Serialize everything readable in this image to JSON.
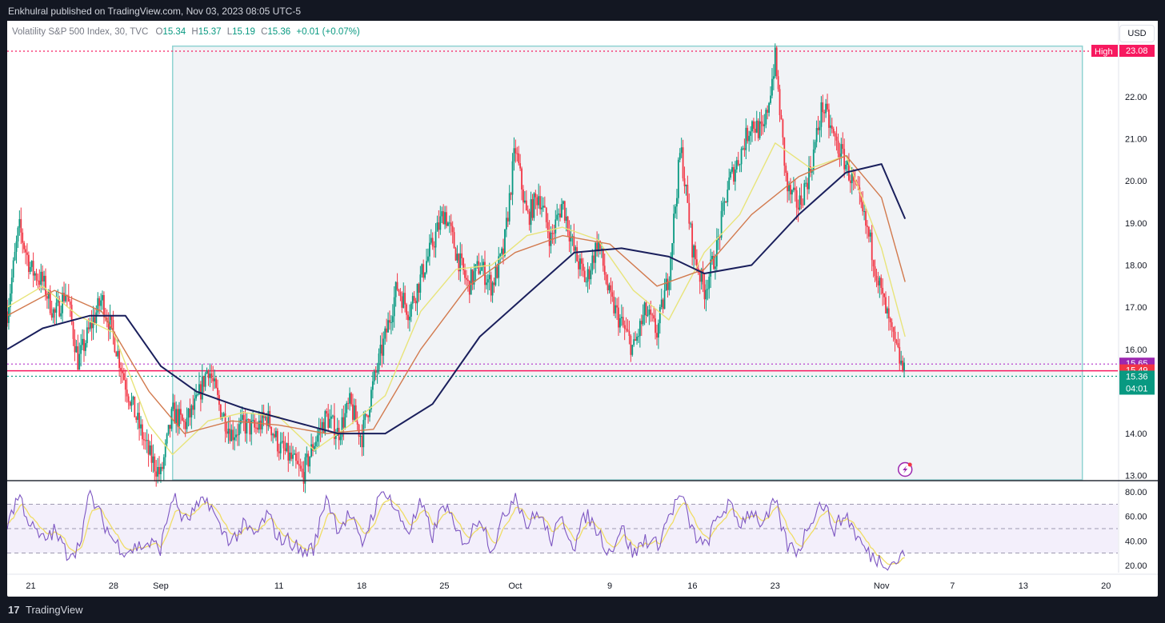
{
  "header": {
    "publish_text": "Enkhulral published on TradingView.com, Nov 03, 2023 08:05 UTC-5"
  },
  "legend": {
    "symbol": "Volatility S&P 500 Index, 30, TVC",
    "o_label": "O",
    "o_value": "15.34",
    "h_label": "H",
    "h_value": "15.37",
    "l_label": "L",
    "l_value": "15.19",
    "c_label": "C",
    "c_value": "15.36",
    "change": "+0.01 (+0.07%)"
  },
  "currency_button": "USD",
  "footer": {
    "logo_glyph": "17",
    "brand": "TradingView"
  },
  "colors": {
    "up": "#089981",
    "down": "#f23645",
    "sma_short": "#e8e47a",
    "sma_mid": "#d27a4e",
    "sma_long": "#1a1f5c",
    "rsi": "#7e57c2",
    "rsi_signal": "#f0dd65",
    "high_label": "#f7195f",
    "box_border": "#8fd3d2",
    "box_fill": "#f1f3f6"
  },
  "chart_data": [
    {
      "type": "candlestick",
      "x_unit": "calendar day (2023)",
      "x_range": [
        "2023-08-19",
        "2023-11-21"
      ],
      "y_range": [
        12.9,
        23.65
      ],
      "y_ticks": [
        "13.00",
        "14.00",
        "16.00",
        "17.00",
        "18.00",
        "19.00",
        "20.00",
        "21.00",
        "22.00"
      ],
      "x_ticks": [
        {
          "date": "2023-08-21",
          "label": "21"
        },
        {
          "date": "2023-08-28",
          "label": "28"
        },
        {
          "date": "2023-09-01",
          "label": "Sep"
        },
        {
          "date": "2023-09-11",
          "label": "11"
        },
        {
          "date": "2023-09-18",
          "label": "18"
        },
        {
          "date": "2023-09-25",
          "label": "25"
        },
        {
          "date": "2023-10-01",
          "label": "Oct"
        },
        {
          "date": "2023-10-09",
          "label": "9"
        },
        {
          "date": "2023-10-16",
          "label": "16"
        },
        {
          "date": "2023-10-23",
          "label": "23"
        },
        {
          "date": "2023-11-01",
          "label": "Nov"
        },
        {
          "date": "2023-11-07",
          "label": "7"
        },
        {
          "date": "2023-11-13",
          "label": "13"
        },
        {
          "date": "2023-11-20",
          "label": "20"
        }
      ],
      "price_path": [
        [
          "2023-08-19",
          16.9
        ],
        [
          "2023-08-20",
          18.9
        ],
        [
          "2023-08-21",
          17.9
        ],
        [
          "2023-08-22",
          17.6
        ],
        [
          "2023-08-23",
          16.8
        ],
        [
          "2023-08-24",
          17.4
        ],
        [
          "2023-08-25",
          15.7
        ],
        [
          "2023-08-26",
          16.5
        ],
        [
          "2023-08-27",
          17.2
        ],
        [
          "2023-08-28",
          16.3
        ],
        [
          "2023-08-29",
          15.2
        ],
        [
          "2023-08-30",
          14.3
        ],
        [
          "2023-08-31",
          13.5
        ],
        [
          "2023-09-01",
          13.0
        ],
        [
          "2023-09-02",
          14.5
        ],
        [
          "2023-09-03",
          14.2
        ],
        [
          "2023-09-04",
          14.7
        ],
        [
          "2023-09-05",
          15.6
        ],
        [
          "2023-09-06",
          14.6
        ],
        [
          "2023-09-07",
          14.0
        ],
        [
          "2023-09-08",
          14.2
        ],
        [
          "2023-09-09",
          14.1
        ],
        [
          "2023-09-10",
          14.4
        ],
        [
          "2023-09-11",
          13.7
        ],
        [
          "2023-09-12",
          13.4
        ],
        [
          "2023-09-13",
          13.0
        ],
        [
          "2023-09-14",
          13.8
        ],
        [
          "2023-09-15",
          14.4
        ],
        [
          "2023-09-16",
          14.0
        ],
        [
          "2023-09-17",
          14.7
        ],
        [
          "2023-09-18",
          13.9
        ],
        [
          "2023-09-19",
          15.2
        ],
        [
          "2023-09-20",
          16.3
        ],
        [
          "2023-09-21",
          17.5
        ],
        [
          "2023-09-22",
          16.9
        ],
        [
          "2023-09-23",
          17.7
        ],
        [
          "2023-09-24",
          18.5
        ],
        [
          "2023-09-25",
          19.3
        ],
        [
          "2023-09-26",
          18.3
        ],
        [
          "2023-09-27",
          17.5
        ],
        [
          "2023-09-28",
          18.0
        ],
        [
          "2023-09-29",
          17.5
        ],
        [
          "2023-09-30",
          18.3
        ],
        [
          "2023-10-01",
          20.8
        ],
        [
          "2023-10-02",
          19.1
        ],
        [
          "2023-10-03",
          19.7
        ],
        [
          "2023-10-04",
          18.6
        ],
        [
          "2023-10-05",
          19.5
        ],
        [
          "2023-10-06",
          18.3
        ],
        [
          "2023-10-07",
          17.6
        ],
        [
          "2023-10-08",
          18.6
        ],
        [
          "2023-10-09",
          17.2
        ],
        [
          "2023-10-10",
          16.6
        ],
        [
          "2023-10-11",
          16.0
        ],
        [
          "2023-10-12",
          16.9
        ],
        [
          "2023-10-13",
          16.4
        ],
        [
          "2023-10-14",
          17.8
        ],
        [
          "2023-10-15",
          20.8
        ],
        [
          "2023-10-16",
          18.4
        ],
        [
          "2023-10-17",
          17.4
        ],
        [
          "2023-10-18",
          18.3
        ],
        [
          "2023-10-19",
          19.9
        ],
        [
          "2023-10-20",
          20.6
        ],
        [
          "2023-10-21",
          21.4
        ],
        [
          "2023-10-22",
          21.1
        ],
        [
          "2023-10-23",
          22.9
        ],
        [
          "2023-10-24",
          19.8
        ],
        [
          "2023-10-25",
          19.4
        ],
        [
          "2023-10-26",
          20.3
        ],
        [
          "2023-10-27",
          21.8
        ],
        [
          "2023-10-28",
          21.0
        ],
        [
          "2023-10-29",
          20.4
        ],
        [
          "2023-10-30",
          19.6
        ],
        [
          "2023-10-31",
          18.6
        ],
        [
          "2023-11-01",
          17.3
        ],
        [
          "2023-11-02",
          16.2
        ],
        [
          "2023-11-03",
          15.36
        ]
      ],
      "moving_averages": [
        {
          "color_key": "sma_short",
          "points": [
            [
              "2023-08-19",
              17.0
            ],
            [
              "2023-08-22",
              17.5
            ],
            [
              "2023-08-25",
              16.8
            ],
            [
              "2023-08-28",
              16.4
            ],
            [
              "2023-08-31",
              14.2
            ],
            [
              "2023-09-02",
              13.5
            ],
            [
              "2023-09-05",
              14.3
            ],
            [
              "2023-09-08",
              14.5
            ],
            [
              "2023-09-11",
              14.4
            ],
            [
              "2023-09-14",
              13.6
            ],
            [
              "2023-09-17",
              14.2
            ],
            [
              "2023-09-20",
              14.9
            ],
            [
              "2023-09-23",
              16.9
            ],
            [
              "2023-09-26",
              17.9
            ],
            [
              "2023-09-29",
              18.0
            ],
            [
              "2023-10-02",
              18.7
            ],
            [
              "2023-10-05",
              18.9
            ],
            [
              "2023-10-08",
              18.6
            ],
            [
              "2023-10-11",
              17.4
            ],
            [
              "2023-10-14",
              16.7
            ],
            [
              "2023-10-17",
              18.3
            ],
            [
              "2023-10-20",
              19.2
            ],
            [
              "2023-10-23",
              20.9
            ],
            [
              "2023-10-26",
              20.3
            ],
            [
              "2023-10-29",
              20.6
            ],
            [
              "2023-11-01",
              18.4
            ],
            [
              "2023-11-03",
              16.3
            ]
          ]
        },
        {
          "color_key": "sma_mid",
          "points": [
            [
              "2023-08-19",
              16.8
            ],
            [
              "2023-08-23",
              17.4
            ],
            [
              "2023-08-27",
              16.9
            ],
            [
              "2023-08-31",
              15.0
            ],
            [
              "2023-09-03",
              14.0
            ],
            [
              "2023-09-07",
              14.3
            ],
            [
              "2023-09-11",
              14.2
            ],
            [
              "2023-09-15",
              14.0
            ],
            [
              "2023-09-19",
              14.1
            ],
            [
              "2023-09-23",
              16.0
            ],
            [
              "2023-09-27",
              17.5
            ],
            [
              "2023-10-01",
              18.3
            ],
            [
              "2023-10-05",
              18.7
            ],
            [
              "2023-10-09",
              18.5
            ],
            [
              "2023-10-13",
              17.5
            ],
            [
              "2023-10-17",
              17.9
            ],
            [
              "2023-10-21",
              19.2
            ],
            [
              "2023-10-25",
              20.1
            ],
            [
              "2023-10-29",
              20.6
            ],
            [
              "2023-11-01",
              19.6
            ],
            [
              "2023-11-03",
              17.6
            ]
          ]
        },
        {
          "color_key": "sma_long",
          "points": [
            [
              "2023-08-19",
              16.0
            ],
            [
              "2023-08-22",
              16.5
            ],
            [
              "2023-08-26",
              16.8
            ],
            [
              "2023-08-29",
              16.8
            ],
            [
              "2023-09-01",
              15.6
            ],
            [
              "2023-09-04",
              15.0
            ],
            [
              "2023-09-08",
              14.6
            ],
            [
              "2023-09-12",
              14.3
            ],
            [
              "2023-09-16",
              14.0
            ],
            [
              "2023-09-20",
              14.0
            ],
            [
              "2023-09-24",
              14.7
            ],
            [
              "2023-09-28",
              16.3
            ],
            [
              "2023-10-02",
              17.3
            ],
            [
              "2023-10-06",
              18.3
            ],
            [
              "2023-10-10",
              18.4
            ],
            [
              "2023-10-14",
              18.2
            ],
            [
              "2023-10-17",
              17.8
            ],
            [
              "2023-10-21",
              18.0
            ],
            [
              "2023-10-25",
              19.2
            ],
            [
              "2023-10-29",
              20.2
            ],
            [
              "2023-11-01",
              20.4
            ],
            [
              "2023-11-03",
              19.1
            ]
          ]
        }
      ],
      "highlight_range": {
        "x_start": "2023-09-02",
        "x_end": "2023-11-18",
        "y_low": 12.9,
        "y_high": 23.2
      },
      "price_lines": [
        {
          "value": 23.08,
          "style": "dotted",
          "color_key": "high_label"
        },
        {
          "value": 15.65,
          "style": "dotted",
          "color": "#b12ec9"
        },
        {
          "value": 15.49,
          "style": "solid",
          "color": "#f7195f"
        },
        {
          "value": 15.36,
          "style": "dotted",
          "color": "#089981"
        }
      ],
      "price_labels": [
        {
          "value": 23.08,
          "tag": "High",
          "text": "23.08",
          "bg": "#f7195f"
        },
        {
          "value": 15.65,
          "text": "15.65",
          "bg": "#9c27b0"
        },
        {
          "value": 15.49,
          "text": "15.49",
          "bg": "#f23645"
        },
        {
          "value": 15.36,
          "text": "15.36",
          "sub": "04:01",
          "bg": "#089981"
        }
      ]
    },
    {
      "type": "line",
      "series_kind": "oscillator",
      "x_unit": "calendar day (2023)",
      "y_range": [
        14,
        86
      ],
      "y_ticks": [
        "80.00",
        "60.00",
        "40.00",
        "20.00"
      ],
      "band": [
        30,
        70
      ],
      "mid_line": 50,
      "series_key": "rsi",
      "signal_key": "rsi_signal",
      "path": [
        [
          "2023-08-19",
          55
        ],
        [
          "2023-08-20",
          78
        ],
        [
          "2023-08-21",
          52
        ],
        [
          "2023-08-22",
          40
        ],
        [
          "2023-08-23",
          48
        ],
        [
          "2023-08-24",
          30
        ],
        [
          "2023-08-25",
          34
        ],
        [
          "2023-08-26",
          78
        ],
        [
          "2023-08-27",
          58
        ],
        [
          "2023-08-28",
          40
        ],
        [
          "2023-08-29",
          32
        ],
        [
          "2023-08-30",
          35
        ],
        [
          "2023-08-31",
          38
        ],
        [
          "2023-09-01",
          34
        ],
        [
          "2023-09-02",
          78
        ],
        [
          "2023-09-03",
          55
        ],
        [
          "2023-09-04",
          66
        ],
        [
          "2023-09-05",
          74
        ],
        [
          "2023-09-06",
          50
        ],
        [
          "2023-09-07",
          40
        ],
        [
          "2023-09-08",
          52
        ],
        [
          "2023-09-09",
          44
        ],
        [
          "2023-09-10",
          62
        ],
        [
          "2023-09-11",
          42
        ],
        [
          "2023-09-12",
          40
        ],
        [
          "2023-09-13",
          30
        ],
        [
          "2023-09-14",
          35
        ],
        [
          "2023-09-15",
          78
        ],
        [
          "2023-09-16",
          50
        ],
        [
          "2023-09-17",
          62
        ],
        [
          "2023-09-18",
          36
        ],
        [
          "2023-09-19",
          64
        ],
        [
          "2023-09-20",
          83
        ],
        [
          "2023-09-21",
          62
        ],
        [
          "2023-09-22",
          48
        ],
        [
          "2023-09-23",
          70
        ],
        [
          "2023-09-24",
          44
        ],
        [
          "2023-09-25",
          72
        ],
        [
          "2023-09-26",
          46
        ],
        [
          "2023-09-27",
          40
        ],
        [
          "2023-09-28",
          62
        ],
        [
          "2023-09-29",
          33
        ],
        [
          "2023-09-30",
          58
        ],
        [
          "2023-10-01",
          80
        ],
        [
          "2023-10-02",
          52
        ],
        [
          "2023-10-03",
          64
        ],
        [
          "2023-10-04",
          40
        ],
        [
          "2023-10-05",
          58
        ],
        [
          "2023-10-06",
          36
        ],
        [
          "2023-10-07",
          62
        ],
        [
          "2023-10-08",
          48
        ],
        [
          "2023-10-09",
          30
        ],
        [
          "2023-10-10",
          52
        ],
        [
          "2023-10-11",
          28
        ],
        [
          "2023-10-12",
          42
        ],
        [
          "2023-10-13",
          36
        ],
        [
          "2023-10-14",
          60
        ],
        [
          "2023-10-15",
          78
        ],
        [
          "2023-10-16",
          48
        ],
        [
          "2023-10-17",
          34
        ],
        [
          "2023-10-18",
          56
        ],
        [
          "2023-10-19",
          70
        ],
        [
          "2023-10-20",
          54
        ],
        [
          "2023-10-21",
          66
        ],
        [
          "2023-10-22",
          52
        ],
        [
          "2023-10-23",
          72
        ],
        [
          "2023-10-24",
          36
        ],
        [
          "2023-10-25",
          32
        ],
        [
          "2023-10-26",
          58
        ],
        [
          "2023-10-27",
          72
        ],
        [
          "2023-10-28",
          50
        ],
        [
          "2023-10-29",
          62
        ],
        [
          "2023-10-30",
          42
        ],
        [
          "2023-10-31",
          28
        ],
        [
          "2023-11-01",
          24
        ],
        [
          "2023-11-02",
          22
        ],
        [
          "2023-11-03",
          30
        ]
      ]
    }
  ]
}
